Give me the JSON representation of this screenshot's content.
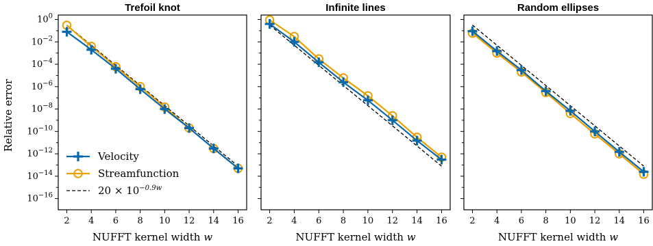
{
  "chart_data": {
    "type": "line",
    "y_scale": "log",
    "grid": false,
    "legend_position": "lower-left",
    "ylabel": "Relative error",
    "ytick_exponents": [
      0,
      -2,
      -4,
      -6,
      -8,
      -10,
      -12,
      -14,
      -16
    ],
    "ylim": [
      1e-17,
      2.5
    ],
    "xlim": [
      1.3,
      16.7
    ],
    "xticks": [
      2,
      4,
      6,
      8,
      10,
      12,
      14,
      16
    ],
    "colors": {
      "velocity": "#0868ac",
      "streamfunction": "#e8a000",
      "reference": "#000000"
    },
    "legend": {
      "velocity": "Velocity",
      "streamfunction": "Streamfunction",
      "reference_prefix": "20 × 10",
      "reference_exponent": "−0.9w"
    },
    "panels": [
      {
        "title": "Trefoil knot",
        "xlabel_text": "NUFFT kernel width ",
        "xlabel_var": "w",
        "show_legend": true,
        "x": [
          2,
          4,
          6,
          8,
          10,
          12,
          14,
          16
        ],
        "series": [
          {
            "name": "Velocity",
            "values": [
              0.08,
              0.002,
              4e-05,
              6e-07,
              1e-08,
              2e-10,
              3e-12,
              5e-14
            ]
          },
          {
            "name": "Streamfunction",
            "values": [
              0.3,
              0.004,
              6e-05,
              1e-06,
              1.5e-08,
              2e-10,
              3e-12,
              5e-14
            ]
          }
        ],
        "reference": {
          "a": 20,
          "b": -0.9
        }
      },
      {
        "title": "Infinite lines",
        "xlabel_text": "NUFFT kernel width ",
        "xlabel_var": "w",
        "show_legend": false,
        "x": [
          2,
          4,
          6,
          8,
          10,
          12,
          14,
          16
        ],
        "series": [
          {
            "name": "Velocity",
            "values": [
              0.4,
              0.01,
              0.00015,
              2.5e-06,
              6e-08,
              1e-09,
              1.5e-11,
              3e-13
            ]
          },
          {
            "name": "Streamfunction",
            "values": [
              0.9,
              0.03,
              0.0003,
              6e-06,
              1.5e-07,
              2.5e-09,
              3e-11,
              5e-13
            ]
          }
        ],
        "reference": {
          "a": 20,
          "b": -0.9
        }
      },
      {
        "title": "Random ellipses",
        "xlabel_text": "NUFFT kernel width ",
        "xlabel_var": "w",
        "show_legend": false,
        "x": [
          2,
          4,
          6,
          8,
          10,
          12,
          14,
          16
        ],
        "series": [
          {
            "name": "Velocity",
            "values": [
              0.09,
              0.0015,
              3e-05,
              4e-07,
              7e-09,
              1e-10,
              1.5e-12,
              2.5e-14
            ]
          },
          {
            "name": "Streamfunction",
            "values": [
              0.06,
              0.001,
              2e-05,
              3e-07,
              4e-09,
              6e-11,
              1e-12,
              1.5e-14
            ]
          }
        ],
        "reference": {
          "a": 20,
          "b": -0.9
        }
      }
    ]
  }
}
